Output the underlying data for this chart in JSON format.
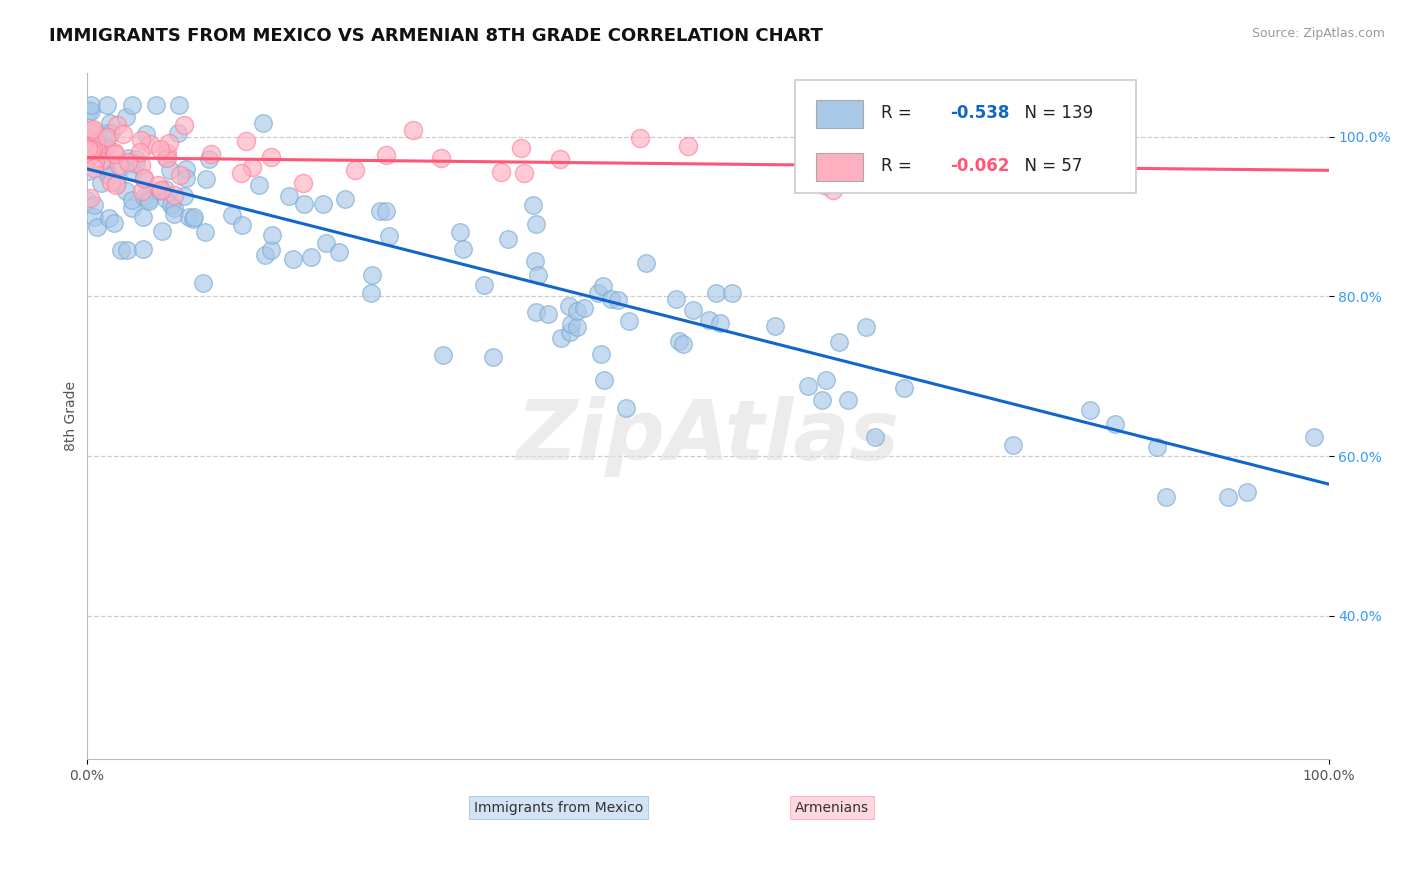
{
  "title": "IMMIGRANTS FROM MEXICO VS ARMENIAN 8TH GRADE CORRELATION CHART",
  "source_text": "Source: ZipAtlas.com",
  "ylabel": "8th Grade",
  "legend_labels": [
    "Immigrants from Mexico",
    "Armenians"
  ],
  "blue_R": -0.538,
  "blue_N": 139,
  "pink_R": -0.062,
  "pink_N": 57,
  "blue_color": "#A8C8E8",
  "blue_edge_color": "#7AAAD4",
  "pink_color": "#FFB0C0",
  "pink_edge_color": "#FF8098",
  "blue_line_color": "#1166CC",
  "pink_line_color": "#FF5577",
  "watermark": "ZipAtlas",
  "xlim": [
    0.0,
    1.0
  ],
  "ylim": [
    0.22,
    1.08
  ],
  "yticks": [
    0.4,
    0.6,
    0.8,
    1.0
  ],
  "ytick_labels": [
    "40.0%",
    "60.0%",
    "80.0%",
    "100.0%"
  ],
  "xtick_labels": [
    "0.0%",
    "100.0%"
  ],
  "xticks": [
    0.0,
    1.0
  ],
  "background_color": "#FFFFFF",
  "grid_color": "#CCCCCC",
  "title_fontsize": 13,
  "axis_label_fontsize": 10,
  "blue_line_start_y": 0.96,
  "blue_line_end_y": 0.565,
  "pink_line_start_y": 0.974,
  "pink_line_end_y": 0.958
}
